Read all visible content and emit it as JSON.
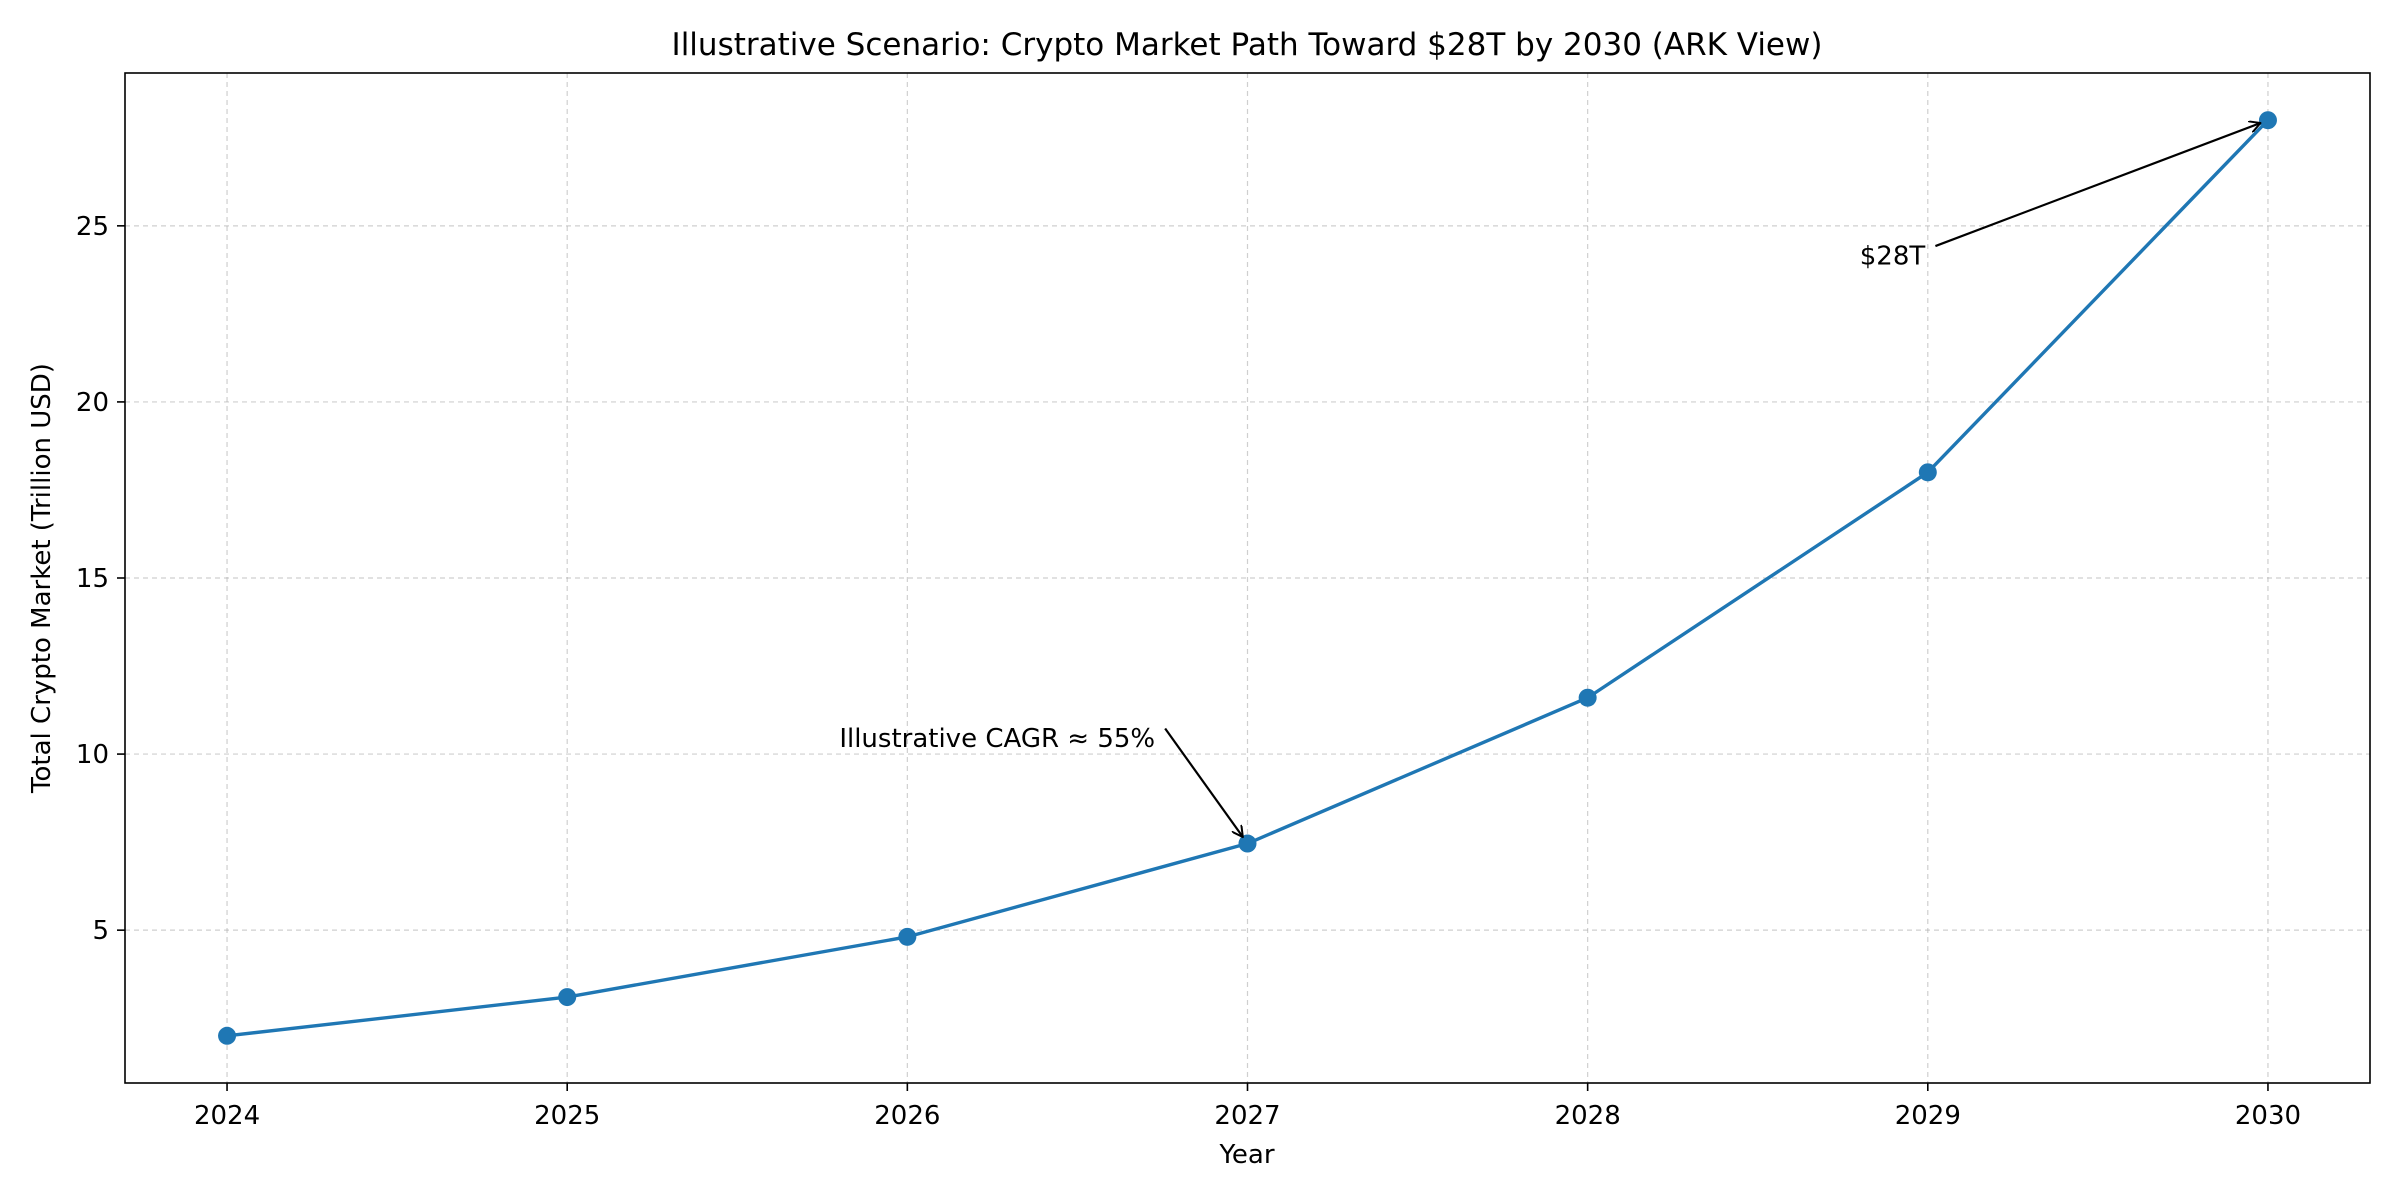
{
  "chart_data": {
    "type": "line",
    "title": "Illustrative Scenario: Crypto Market Path Toward $28T by 2030 (ARK View)",
    "xlabel": "Year",
    "ylabel": "Total Crypto Market (Trillion USD)",
    "x": [
      2024,
      2025,
      2026,
      2027,
      2028,
      2029,
      2030
    ],
    "x_tick_labels": [
      "2024",
      "2025",
      "2026",
      "2027",
      "2028",
      "2029",
      "2030"
    ],
    "y_ticks": [
      5,
      10,
      15,
      20,
      25
    ],
    "y_tick_labels": [
      "5",
      "10",
      "15",
      "20",
      "25"
    ],
    "xlim": [
      2023.7,
      2030.3
    ],
    "ylim": [
      0.66,
      29.34
    ],
    "grid": true,
    "series": [
      {
        "values": [
          2.0,
          3.1,
          4.81,
          7.46,
          11.6,
          18.0,
          28.0
        ],
        "color": "#1f77b4",
        "marker": "circle"
      }
    ],
    "annotations": [
      {
        "text": "Illustrative CAGR ≈ 55%",
        "point_x": 2027,
        "point_y": 7.46,
        "text_x": 2025.8,
        "text_y": 10.2
      },
      {
        "text": "$28T",
        "point_x": 2030,
        "point_y": 28.0,
        "text_x": 2028.8,
        "text_y": 23.9
      }
    ]
  }
}
